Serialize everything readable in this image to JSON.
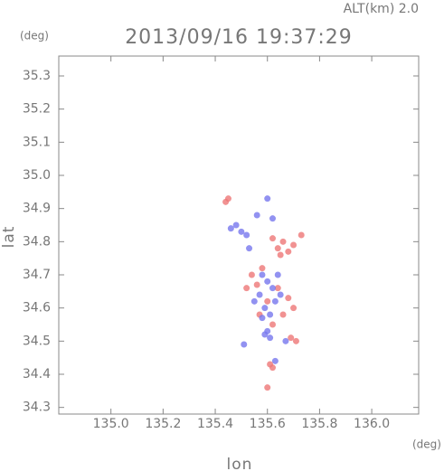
{
  "chart_data": {
    "type": "scatter",
    "title": "2013/09/16 19:37:29",
    "annotation": "ALT(km)  2.0",
    "y_unit": "(deg)",
    "x_unit": "(deg)",
    "xlabel": "lon",
    "ylabel": "lat",
    "xlim": [
      134.8,
      136.18
    ],
    "ylim": [
      34.28,
      35.36
    ],
    "xticks": [
      {
        "value": 135,
        "label": "135.0"
      },
      135.2,
      135.4,
      135.6,
      135.8,
      {
        "value": 136,
        "label": "136.0"
      }
    ],
    "yticks": [
      34.3,
      34.4,
      34.5,
      34.6,
      34.7,
      34.8,
      34.9,
      {
        "value": 35,
        "label": "35.0"
      },
      35.1,
      35.2,
      35.3
    ],
    "series": [
      {
        "color": "#ee7777",
        "x": [
          135.44,
          135.45,
          135.64,
          135.66,
          135.68,
          135.65,
          135.7,
          135.62,
          135.58,
          135.54,
          135.56,
          135.64,
          135.68,
          135.6,
          135.66,
          135.57,
          135.7,
          135.62,
          135.69,
          135.71,
          135.61,
          135.62,
          135.6,
          135.52,
          135.73
        ],
        "values": [
          34.92,
          34.93,
          34.78,
          34.8,
          34.77,
          34.76,
          34.79,
          34.81,
          34.72,
          34.7,
          34.67,
          34.66,
          34.63,
          34.62,
          34.58,
          34.58,
          34.6,
          34.55,
          34.51,
          34.5,
          34.43,
          34.42,
          34.36,
          34.66,
          34.82
        ]
      },
      {
        "color": "#7777ee",
        "x": [
          135.48,
          135.5,
          135.52,
          135.62,
          135.6,
          135.58,
          135.6,
          135.62,
          135.57,
          135.55,
          135.63,
          135.59,
          135.65,
          135.61,
          135.58,
          135.6,
          135.59,
          135.61,
          135.67,
          135.51,
          135.63,
          135.53,
          135.46,
          135.56,
          135.64
        ],
        "values": [
          34.85,
          34.83,
          34.82,
          34.87,
          34.93,
          34.7,
          34.68,
          34.66,
          34.64,
          34.62,
          34.62,
          34.6,
          34.64,
          34.58,
          34.57,
          34.53,
          34.52,
          34.51,
          34.5,
          34.49,
          34.44,
          34.78,
          34.84,
          34.88,
          34.7
        ]
      }
    ]
  }
}
